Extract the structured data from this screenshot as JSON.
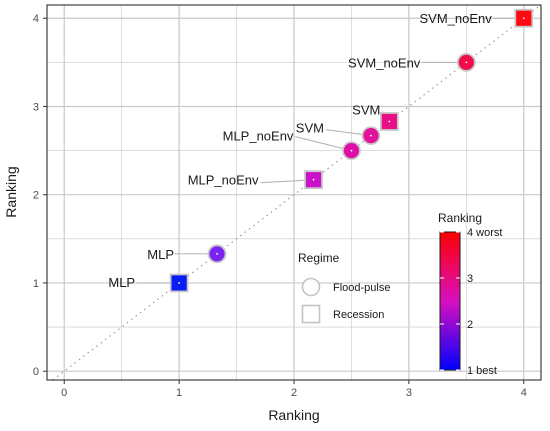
{
  "chart_data": {
    "type": "scatter",
    "xlabel": "Ranking",
    "ylabel": "Ranking",
    "xlim": [
      -0.15,
      4.15
    ],
    "ylim": [
      -0.1,
      4.15
    ],
    "x_ticks": [
      0,
      1,
      2,
      3,
      4
    ],
    "y_ticks": [
      0,
      1,
      2,
      3,
      4
    ],
    "grid": true,
    "reference_line": "y = x, dotted",
    "points": [
      {
        "label": "MLP",
        "regime": "Recession",
        "x": 1.0,
        "y": 1.0,
        "ranking": 1.0,
        "color": "#0a1cf5"
      },
      {
        "label": "MLP",
        "regime": "Flood-pulse",
        "x": 1.33,
        "y": 1.33,
        "ranking": 1.33,
        "color": "#7a22f0"
      },
      {
        "label": "MLP_noEnv",
        "regime": "Recession",
        "x": 2.17,
        "y": 2.17,
        "ranking": 2.17,
        "color": "#cc12c9"
      },
      {
        "label": "MLP_noEnv",
        "regime": "Flood-pulse",
        "x": 2.5,
        "y": 2.5,
        "ranking": 2.5,
        "color": "#dd0fa6"
      },
      {
        "label": "SVM",
        "regime": "Flood-pulse",
        "x": 2.67,
        "y": 2.67,
        "ranking": 2.67,
        "color": "#e2109a"
      },
      {
        "label": "SVM",
        "regime": "Recession",
        "x": 2.83,
        "y": 2.83,
        "ranking": 2.83,
        "color": "#e80f88"
      },
      {
        "label": "SVM_noEnv",
        "regime": "Flood-pulse",
        "x": 3.5,
        "y": 3.5,
        "ranking": 3.5,
        "color": "#f20d4a"
      },
      {
        "label": "SVM_noEnv",
        "regime": "Recession",
        "x": 4.0,
        "y": 4.0,
        "ranking": 4.0,
        "color": "#ff0a14"
      }
    ],
    "legend_regime": {
      "title": "Regime",
      "placement": "bottom-right",
      "entries": [
        {
          "label": "Flood-pulse",
          "shape": "circle"
        },
        {
          "label": "Recession",
          "shape": "square"
        }
      ]
    },
    "legend_ranking": {
      "title": "Ranking",
      "placement": "bottom-right",
      "range": [
        1,
        4
      ],
      "ticks": [
        "1 best",
        "2",
        "3",
        "4 worst"
      ],
      "tick_values": [
        1,
        2,
        3,
        4
      ],
      "color_low": "#0000ff",
      "color_mid": "#d80fbf",
      "color_high": "#ff0000"
    }
  }
}
